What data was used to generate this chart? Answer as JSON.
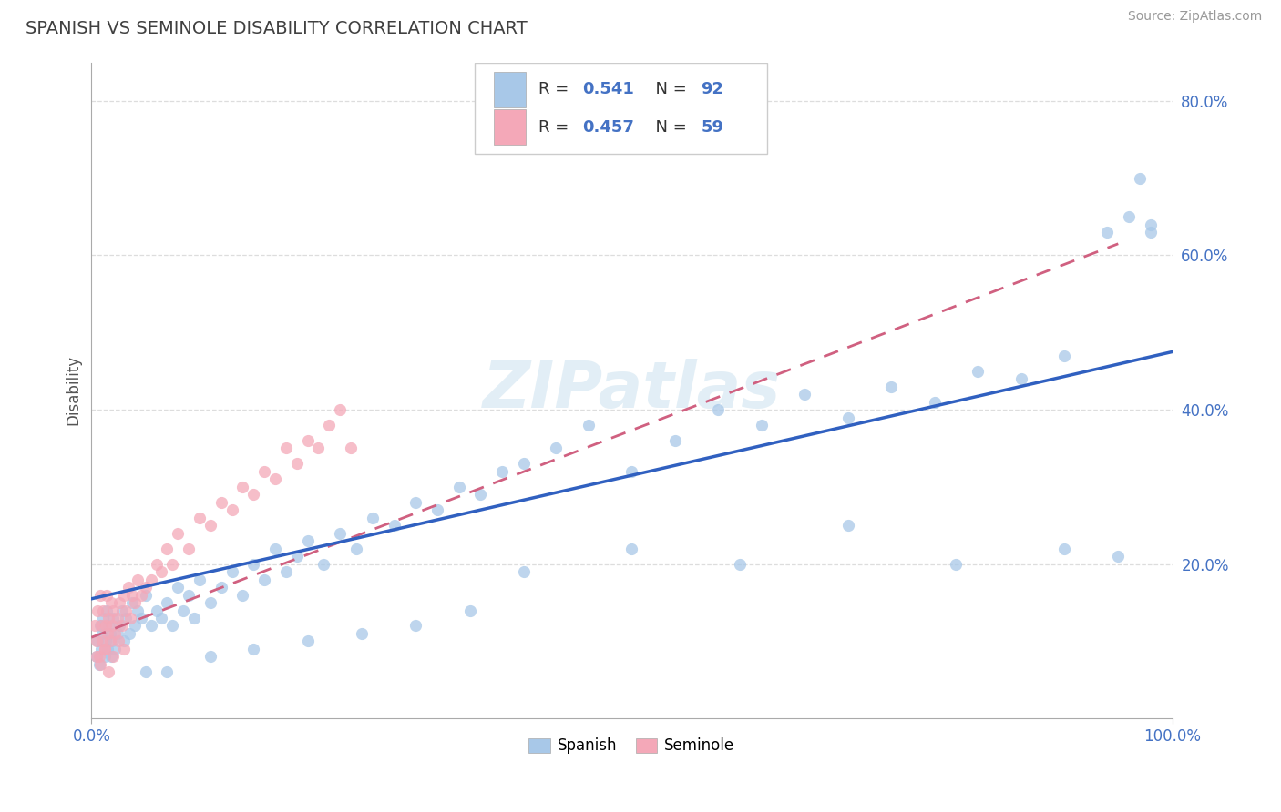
{
  "title": "SPANISH VS SEMINOLE DISABILITY CORRELATION CHART",
  "source": "Source: ZipAtlas.com",
  "ylabel": "Disability",
  "xlim": [
    0.0,
    1.0
  ],
  "ylim": [
    0.0,
    0.85
  ],
  "ytick_vals": [
    0.2,
    0.4,
    0.6,
    0.8
  ],
  "ytick_labels": [
    "20.0%",
    "40.0%",
    "60.0%",
    "80.0%"
  ],
  "xtick_vals": [
    0.0,
    1.0
  ],
  "xtick_labels": [
    "0.0%",
    "100.0%"
  ],
  "spanish_R": 0.541,
  "spanish_N": 92,
  "seminole_R": 0.457,
  "seminole_N": 59,
  "spanish_color": "#a8c8e8",
  "seminole_color": "#f4a8b8",
  "spanish_line_color": "#3060c0",
  "seminole_line_color": "#d06080",
  "seminole_line_dash": [
    6,
    4
  ],
  "watermark_text": "ZIPatlas",
  "watermark_color": "#d0e4f0",
  "background_color": "#ffffff",
  "grid_color": "#dddddd",
  "title_color": "#404040",
  "tick_color": "#4472c4",
  "legend_box_color": "#cccccc",
  "bottom_legend_labels": [
    "Spanish",
    "Seminole"
  ],
  "spanish_x": [
    0.005,
    0.006,
    0.007,
    0.008,
    0.009,
    0.01,
    0.011,
    0.012,
    0.013,
    0.014,
    0.015,
    0.016,
    0.017,
    0.018,
    0.019,
    0.02,
    0.022,
    0.024,
    0.026,
    0.028,
    0.03,
    0.032,
    0.035,
    0.038,
    0.04,
    0.043,
    0.046,
    0.05,
    0.055,
    0.06,
    0.065,
    0.07,
    0.075,
    0.08,
    0.085,
    0.09,
    0.095,
    0.1,
    0.11,
    0.12,
    0.13,
    0.14,
    0.15,
    0.16,
    0.17,
    0.18,
    0.19,
    0.2,
    0.215,
    0.23,
    0.245,
    0.26,
    0.28,
    0.3,
    0.32,
    0.34,
    0.36,
    0.38,
    0.4,
    0.43,
    0.46,
    0.5,
    0.54,
    0.58,
    0.62,
    0.66,
    0.7,
    0.74,
    0.78,
    0.82,
    0.86,
    0.9,
    0.94,
    0.96,
    0.97,
    0.98,
    0.05,
    0.07,
    0.11,
    0.15,
    0.2,
    0.25,
    0.3,
    0.35,
    0.4,
    0.5,
    0.6,
    0.7,
    0.8,
    0.9,
    0.95,
    0.98
  ],
  "spanish_y": [
    0.08,
    0.1,
    0.07,
    0.12,
    0.09,
    0.11,
    0.13,
    0.08,
    0.1,
    0.14,
    0.09,
    0.12,
    0.11,
    0.08,
    0.1,
    0.13,
    0.09,
    0.11,
    0.12,
    0.14,
    0.1,
    0.13,
    0.11,
    0.15,
    0.12,
    0.14,
    0.13,
    0.16,
    0.12,
    0.14,
    0.13,
    0.15,
    0.12,
    0.17,
    0.14,
    0.16,
    0.13,
    0.18,
    0.15,
    0.17,
    0.19,
    0.16,
    0.2,
    0.18,
    0.22,
    0.19,
    0.21,
    0.23,
    0.2,
    0.24,
    0.22,
    0.26,
    0.25,
    0.28,
    0.27,
    0.3,
    0.29,
    0.32,
    0.33,
    0.35,
    0.38,
    0.32,
    0.36,
    0.4,
    0.38,
    0.42,
    0.39,
    0.43,
    0.41,
    0.45,
    0.44,
    0.47,
    0.63,
    0.65,
    0.7,
    0.63,
    0.06,
    0.06,
    0.08,
    0.09,
    0.1,
    0.11,
    0.12,
    0.14,
    0.19,
    0.22,
    0.2,
    0.25,
    0.2,
    0.22,
    0.21,
    0.64
  ],
  "seminole_x": [
    0.003,
    0.005,
    0.006,
    0.007,
    0.008,
    0.009,
    0.01,
    0.011,
    0.012,
    0.013,
    0.014,
    0.015,
    0.016,
    0.017,
    0.018,
    0.019,
    0.02,
    0.022,
    0.024,
    0.026,
    0.028,
    0.03,
    0.032,
    0.034,
    0.036,
    0.038,
    0.04,
    0.043,
    0.046,
    0.05,
    0.055,
    0.06,
    0.065,
    0.07,
    0.075,
    0.08,
    0.09,
    0.1,
    0.11,
    0.12,
    0.13,
    0.14,
    0.15,
    0.16,
    0.17,
    0.18,
    0.19,
    0.2,
    0.21,
    0.22,
    0.23,
    0.24,
    0.005,
    0.008,
    0.012,
    0.016,
    0.02,
    0.025,
    0.03
  ],
  "seminole_y": [
    0.12,
    0.1,
    0.14,
    0.08,
    0.16,
    0.12,
    0.1,
    0.14,
    0.09,
    0.12,
    0.16,
    0.11,
    0.13,
    0.1,
    0.15,
    0.12,
    0.14,
    0.11,
    0.13,
    0.15,
    0.12,
    0.16,
    0.14,
    0.17,
    0.13,
    0.16,
    0.15,
    0.18,
    0.16,
    0.17,
    0.18,
    0.2,
    0.19,
    0.22,
    0.2,
    0.24,
    0.22,
    0.26,
    0.25,
    0.28,
    0.27,
    0.3,
    0.29,
    0.32,
    0.31,
    0.35,
    0.33,
    0.36,
    0.35,
    0.38,
    0.4,
    0.35,
    0.08,
    0.07,
    0.09,
    0.06,
    0.08,
    0.1,
    0.09
  ],
  "sp_line_x0": 0.0,
  "sp_line_x1": 1.0,
  "sp_line_y0": 0.155,
  "sp_line_y1": 0.475,
  "sm_line_x0": 0.0,
  "sm_line_x1": 0.95,
  "sm_line_y0": 0.105,
  "sm_line_y1": 0.615
}
